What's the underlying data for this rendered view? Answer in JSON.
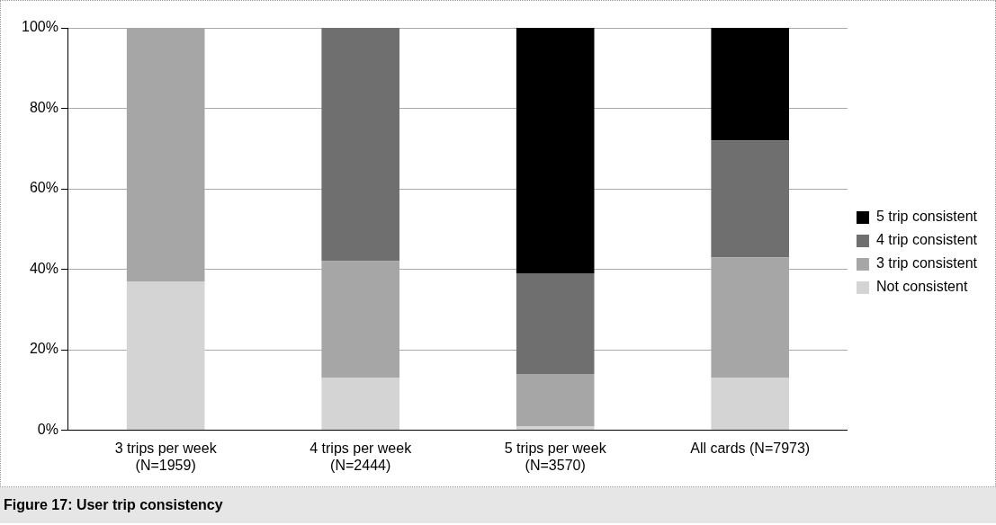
{
  "chart_data": {
    "type": "bar",
    "stacked": true,
    "title": "Figure 17:  User trip consistency",
    "categories": [
      "3 trips per week\n(N=1959)",
      "4 trips per week\n(N=2444)",
      "5 trips per week\n(N=3570)",
      "All cards (N=7973)"
    ],
    "series": [
      {
        "name": "Not consistent",
        "color": "#d4d4d4",
        "values": [
          37,
          13,
          1,
          13
        ]
      },
      {
        "name": "3 trip consistent",
        "color": "#a6a6a6",
        "values": [
          63,
          29,
          13,
          30
        ]
      },
      {
        "name": "4 trip consistent",
        "color": "#6f6f6f",
        "values": [
          null,
          58,
          25,
          29
        ]
      },
      {
        "name": "5 trip consistent",
        "color": "#000000",
        "values": [
          null,
          null,
          61,
          28
        ]
      }
    ],
    "ylim": [
      0,
      100
    ],
    "yticks": [
      {
        "value": 0,
        "label": "0%"
      },
      {
        "value": 20,
        "label": "20%"
      },
      {
        "value": 40,
        "label": "40%"
      },
      {
        "value": 60,
        "label": "60%"
      },
      {
        "value": 80,
        "label": "80%"
      },
      {
        "value": 100,
        "label": "100%"
      }
    ],
    "grid": "y",
    "legend": "right"
  }
}
